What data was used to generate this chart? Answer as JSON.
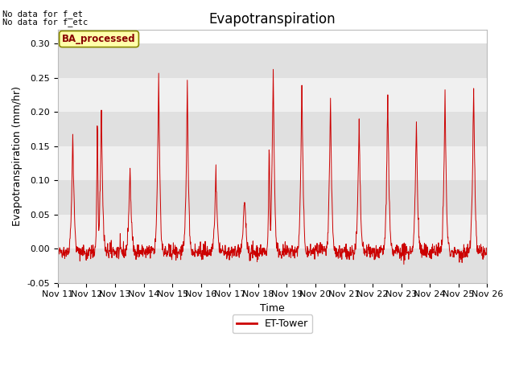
{
  "title": "Evapotranspiration",
  "ylabel": "Evapotranspiration (mm/hr)",
  "xlabel": "Time",
  "ylim": [
    -0.05,
    0.32
  ],
  "yticks": [
    -0.05,
    0.0,
    0.05,
    0.1,
    0.15,
    0.2,
    0.25,
    0.3
  ],
  "x_labels": [
    "Nov 11",
    "Nov 12",
    "Nov 13",
    "Nov 14",
    "Nov 15",
    "Nov 16",
    "Nov 17",
    "Nov 18",
    "Nov 19",
    "Nov 20",
    "Nov 21",
    "Nov 22",
    "Nov 23",
    "Nov 24",
    "Nov 25",
    "Nov 26"
  ],
  "text_annotations": [
    "No data for f_et",
    "No data for f_etc"
  ],
  "legend_label": "ET-Tower",
  "legend_box_label": "BA_processed",
  "line_color": "#cc0000",
  "fig_bg_color": "#ffffff",
  "plot_bg_color": "#ffffff",
  "band_color_dark": "#e0e0e0",
  "band_color_light": "#f0f0f0",
  "grid_color": "#ffffff",
  "title_fontsize": 12,
  "axis_fontsize": 9,
  "tick_fontsize": 8,
  "day_peaks": [
    0.17,
    0.21,
    0.12,
    0.26,
    0.24,
    0.12,
    0.08,
    0.27,
    0.25,
    0.22,
    0.19,
    0.23,
    0.19,
    0.23,
    0.24
  ],
  "n_days": 15,
  "points_per_day": 96,
  "random_seed": 42
}
